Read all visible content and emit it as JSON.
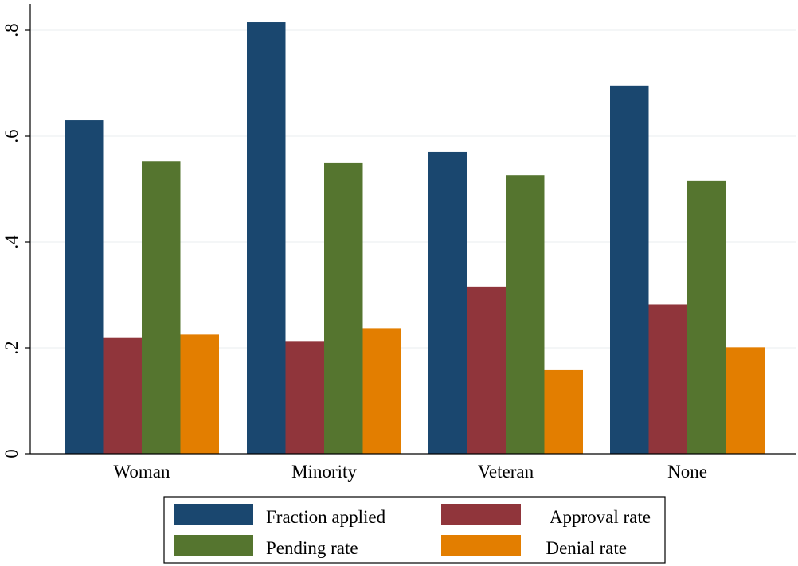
{
  "chart_data": {
    "type": "bar",
    "title": "",
    "xlabel": "",
    "ylabel": "",
    "categories": [
      "Woman",
      "Minority",
      "Veteran",
      "None"
    ],
    "series": [
      {
        "name": "Fraction applied",
        "color": "#1a476f",
        "values": [
          0.63,
          0.815,
          0.57,
          0.695
        ]
      },
      {
        "name": "Approval rate",
        "color": "#90353b",
        "values": [
          0.22,
          0.213,
          0.316,
          0.282
        ]
      },
      {
        "name": "Pending rate",
        "color": "#55752f",
        "values": [
          0.553,
          0.549,
          0.526,
          0.516
        ]
      },
      {
        "name": "Denial rate",
        "color": "#e37e00",
        "values": [
          0.225,
          0.237,
          0.158,
          0.201
        ]
      }
    ],
    "ylim": [
      0,
      0.85
    ],
    "yticks": [
      {
        "value": 0,
        "label": "0"
      },
      {
        "value": 0.2,
        "label": ".2"
      },
      {
        "value": 0.4,
        "label": ".4"
      },
      {
        "value": 0.6,
        "label": ".6"
      },
      {
        "value": 0.8,
        "label": ".8"
      }
    ],
    "grid": true,
    "legend_position": "bottom"
  }
}
